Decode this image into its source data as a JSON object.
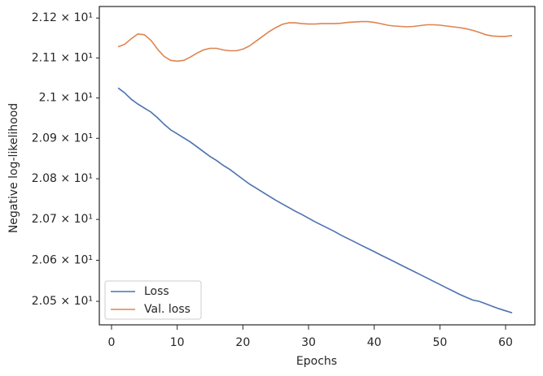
{
  "chart_data": {
    "type": "line",
    "xlabel": "Epochs",
    "ylabel": "Negative log-likelihood",
    "x": [
      1,
      2,
      3,
      4,
      5,
      6,
      7,
      8,
      9,
      10,
      11,
      12,
      13,
      14,
      15,
      16,
      17,
      18,
      19,
      20,
      21,
      22,
      23,
      24,
      25,
      26,
      27,
      28,
      29,
      30,
      31,
      32,
      33,
      34,
      35,
      36,
      37,
      38,
      39,
      40,
      41,
      42,
      43,
      44,
      45,
      46,
      47,
      48,
      49,
      50,
      51,
      52,
      53,
      54,
      55,
      56,
      57,
      58,
      59,
      60,
      61
    ],
    "series": [
      {
        "name": "Loss",
        "color": "#4c72b0",
        "values": [
          21.025,
          21.013,
          20.997,
          20.985,
          20.975,
          20.965,
          20.951,
          20.935,
          20.921,
          20.911,
          20.901,
          20.891,
          20.879,
          20.867,
          20.855,
          20.845,
          20.833,
          20.823,
          20.811,
          20.799,
          20.787,
          20.777,
          20.767,
          20.757,
          20.747,
          20.738,
          20.729,
          20.72,
          20.712,
          20.703,
          20.694,
          20.686,
          20.678,
          20.67,
          20.661,
          20.653,
          20.645,
          20.637,
          20.629,
          20.621,
          20.613,
          20.605,
          20.597,
          20.589,
          20.581,
          20.573,
          20.565,
          20.557,
          20.549,
          20.541,
          20.533,
          20.525,
          20.517,
          20.51,
          20.503,
          20.5,
          20.494,
          20.488,
          20.482,
          20.477,
          20.472
        ]
      },
      {
        "name": "Val. loss",
        "color": "#dd8452",
        "values": [
          21.128,
          21.134,
          21.148,
          21.16,
          21.158,
          21.144,
          21.122,
          21.104,
          21.094,
          21.092,
          21.094,
          21.102,
          21.112,
          21.12,
          21.124,
          21.124,
          21.12,
          21.118,
          21.118,
          21.122,
          21.13,
          21.142,
          21.154,
          21.166,
          21.176,
          21.184,
          21.188,
          21.188,
          21.186,
          21.185,
          21.185,
          21.186,
          21.186,
          21.186,
          21.187,
          21.189,
          21.19,
          21.191,
          21.191,
          21.189,
          21.186,
          21.182,
          21.18,
          21.179,
          21.178,
          21.179,
          21.181,
          21.183,
          21.183,
          21.182,
          21.18,
          21.178,
          21.176,
          21.173,
          21.169,
          21.164,
          21.158,
          21.155,
          21.154,
          21.154,
          21.156
        ]
      }
    ],
    "xlim": [
      -1.86,
      64.46
    ],
    "xticks": [
      0,
      10,
      20,
      30,
      40,
      50,
      60
    ],
    "ylim": [
      20.443,
      21.229
    ],
    "log_y": true,
    "yticks": [
      {
        "value": 20.5,
        "label": "2.05 × 10¹"
      },
      {
        "value": 20.6,
        "label": "2.06 × 10¹"
      },
      {
        "value": 20.7,
        "label": "2.07 × 10¹"
      },
      {
        "value": 20.8,
        "label": "2.08 × 10¹"
      },
      {
        "value": 20.9,
        "label": "2.09 × 10¹"
      },
      {
        "value": 21.0,
        "label": "2.1 × 10¹"
      },
      {
        "value": 21.1,
        "label": "2.11 × 10¹"
      },
      {
        "value": 21.2,
        "label": "2.12 × 10¹"
      }
    ],
    "legend": "lower left"
  }
}
